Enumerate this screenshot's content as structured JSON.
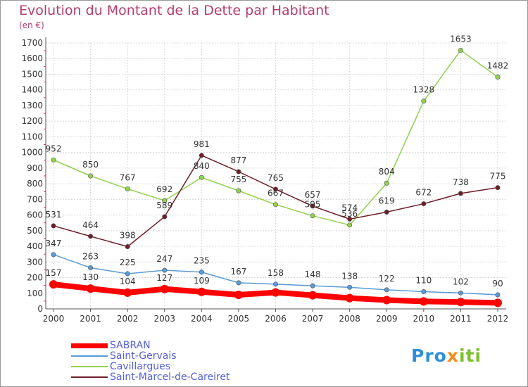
{
  "chart_data": {
    "type": "line",
    "title": "Evolution du Montant de la Dette par Habitant",
    "subtitle": "(en €)",
    "xlabel": "",
    "ylabel": "",
    "ylim": [
      0,
      1700
    ],
    "yticks": [
      "0",
      "100",
      "200",
      "300",
      "400",
      "500",
      "600",
      "700",
      "800",
      "900",
      "1000",
      "1100",
      "1200",
      "1300",
      "1400",
      "1500",
      "1600",
      "1700"
    ],
    "categories": [
      "2000",
      "2001",
      "2002",
      "2003",
      "2004",
      "2005",
      "2006",
      "2007",
      "2008",
      "2009",
      "2010",
      "2011",
      "2012"
    ],
    "grid": true,
    "legend_position": "bottom-left",
    "series": [
      {
        "name": "SABRAN",
        "color": "#ff0000",
        "values": [
          157,
          130,
          104,
          127,
          109,
          90,
          105,
          87,
          69,
          56,
          48,
          44,
          39
        ],
        "labels": [
          "157",
          "130",
          "104",
          "127",
          "109",
          "",
          "",
          "",
          "",
          "",
          "",
          "",
          ""
        ]
      },
      {
        "name": "Saint-Gervais",
        "color": "#5b9bd5",
        "values": [
          347,
          263,
          225,
          247,
          235,
          167,
          158,
          148,
          138,
          122,
          110,
          102,
          90
        ],
        "labels": [
          "347",
          "263",
          "225",
          "247",
          "235",
          "167",
          "158",
          "148",
          "138",
          "122",
          "110",
          "102",
          "90"
        ]
      },
      {
        "name": "Cavillargues",
        "color": "#92d050",
        "values": [
          952,
          850,
          767,
          692,
          840,
          755,
          667,
          595,
          536,
          804,
          1328,
          1653,
          1482
        ],
        "labels": [
          "952",
          "850",
          "767",
          "692",
          "840",
          "755",
          "667",
          "595",
          "536",
          "804",
          "1328",
          "1653",
          "1482"
        ]
      },
      {
        "name": "Saint-Marcel-de-Careiret",
        "color": "#6e1e2a",
        "values": [
          531,
          464,
          398,
          589,
          981,
          877,
          765,
          657,
          574,
          619,
          672,
          738,
          775
        ],
        "labels": [
          "531",
          "464",
          "398",
          "589",
          "981",
          "877",
          "765",
          "657",
          "574",
          "619",
          "672",
          "738",
          "775"
        ]
      }
    ]
  },
  "logo": {
    "p1": "Pro",
    "p2": "x",
    "p3": "iti"
  }
}
